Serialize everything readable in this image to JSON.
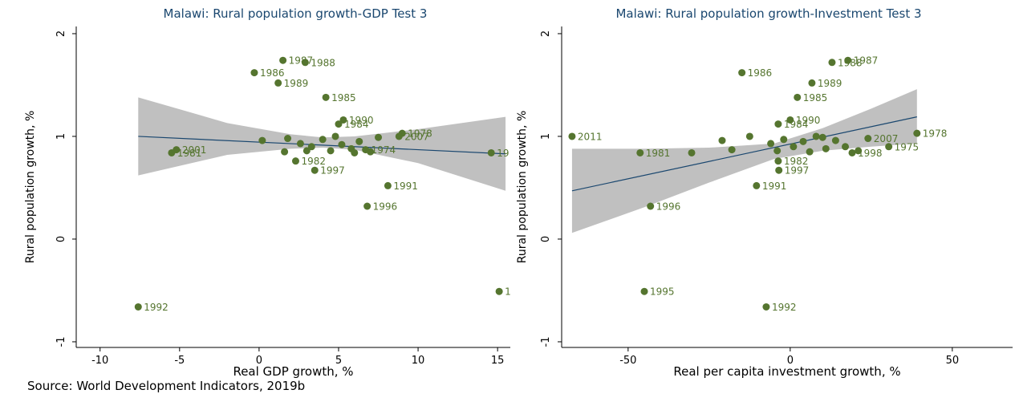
{
  "chart_data": [
    {
      "type": "scatter",
      "title": "Malawi: Rural population growth-GDP Test 3",
      "x_label": "Real GDP growth, %",
      "y_label": "Rural population growth, %",
      "xlim": [
        -11.5,
        15.8
      ],
      "ylim": [
        -1.055,
        2.07
      ],
      "xticks": [
        -10,
        -5,
        0,
        5,
        10,
        15
      ],
      "yticks": [
        -1,
        0,
        1,
        2
      ],
      "color": "#55752f",
      "line_color": "#1a476f",
      "band_color": "#c0c0c0",
      "points": {
        "x": [
          1.5,
          2.9,
          -0.3,
          1.2,
          4.2,
          5.3,
          5.0,
          9.0,
          8.8,
          6.7,
          -5.2,
          -5.5,
          2.3,
          3.5,
          8.1,
          6.8,
          15.1,
          -7.6,
          14.6,
          0.2,
          1.8,
          2.6,
          3.3,
          4.0,
          4.5,
          5.2,
          5.8,
          6.3,
          7.0,
          7.5,
          1.6,
          3.0,
          4.8,
          6.0
        ],
        "y": [
          1.74,
          1.72,
          1.62,
          1.52,
          1.38,
          1.16,
          1.12,
          1.03,
          1.0,
          0.87,
          0.87,
          0.84,
          0.76,
          0.67,
          0.52,
          0.32,
          -0.51,
          -0.66,
          0.84,
          0.96,
          0.98,
          0.93,
          0.9,
          0.97,
          0.86,
          0.92,
          0.88,
          0.95,
          0.85,
          0.99,
          0.85,
          0.86,
          1.0,
          0.84
        ],
        "labels": [
          "1987",
          "1988",
          "1986",
          "1989",
          "1985",
          "1990",
          "1984",
          "1978",
          "2007",
          "1974",
          "2001",
          "1981",
          "1982",
          "1997",
          "1991",
          "1996",
          "1",
          "1992",
          "19",
          null,
          null,
          null,
          null,
          null,
          null,
          null,
          null,
          null,
          null,
          null,
          null,
          null,
          null,
          null
        ]
      },
      "fit": {
        "x": [
          -7.6,
          15.5
        ],
        "y": [
          1.0,
          0.83
        ]
      },
      "ci": {
        "x": [
          -7.6,
          -2,
          2,
          4,
          6,
          10,
          15.5
        ],
        "upper": [
          1.38,
          1.13,
          1.02,
          0.99,
          1.0,
          1.07,
          1.19
        ],
        "lower": [
          0.62,
          0.82,
          0.88,
          0.89,
          0.87,
          0.74,
          0.47
        ]
      }
    },
    {
      "type": "scatter",
      "title": "Malawi: Rural population growth-Investment Test 3",
      "x_label": "Real per capita investment growth, %",
      "y_label": "Rural population growth, %",
      "xlim": [
        -70.5,
        68.6
      ],
      "ylim": [
        -1.055,
        2.07
      ],
      "xticks": [
        -50,
        0,
        50
      ],
      "yticks": [
        -1,
        0,
        1,
        2
      ],
      "color": "#55752f",
      "line_color": "#1a476f",
      "band_color": "#c0c0c0",
      "points": {
        "x": [
          -67.3,
          39.1,
          -46.3,
          -30.4,
          17.8,
          12.9,
          -14.9,
          6.7,
          2.2,
          0,
          -3.7,
          -3.7,
          -3.5,
          -10.4,
          -43.1,
          -45,
          -7.4,
          30.4,
          19.1,
          24,
          -21,
          -12.5,
          -6,
          -2,
          1,
          4,
          8,
          11,
          14,
          17,
          21,
          -18,
          -4,
          6,
          10
        ],
        "y": [
          1.0,
          1.03,
          0.84,
          0.84,
          1.74,
          1.72,
          1.62,
          1.52,
          1.38,
          1.16,
          1.12,
          0.76,
          0.67,
          0.52,
          0.32,
          -0.51,
          -0.66,
          0.9,
          0.84,
          0.98,
          0.96,
          1.0,
          0.93,
          0.97,
          0.9,
          0.95,
          1.0,
          0.88,
          0.96,
          0.9,
          0.86,
          0.87,
          0.86,
          0.85,
          0.99
        ],
        "labels": [
          "2011",
          "1978",
          "1981",
          null,
          "1987",
          "1988",
          "1986",
          "1989",
          "1985",
          "1990",
          "1984",
          "1982",
          "1997",
          "1991",
          "1996",
          "1995",
          "1992",
          "1975",
          "1998",
          "2007",
          null,
          null,
          null,
          null,
          null,
          null,
          null,
          null,
          null,
          null,
          null,
          null,
          null,
          null,
          null
        ]
      },
      "fit": {
        "x": [
          -67.3,
          39.1
        ],
        "y": [
          0.47,
          1.19
        ]
      },
      "ci": {
        "x": [
          -67.3,
          -45,
          -25,
          -5,
          10,
          25,
          39.1
        ],
        "upper": [
          0.88,
          0.88,
          0.89,
          0.93,
          1.08,
          1.27,
          1.46
        ],
        "lower": [
          0.06,
          0.31,
          0.55,
          0.78,
          0.86,
          0.9,
          0.93
        ]
      }
    }
  ],
  "source": "Source: World Development Indicators, 2019b"
}
